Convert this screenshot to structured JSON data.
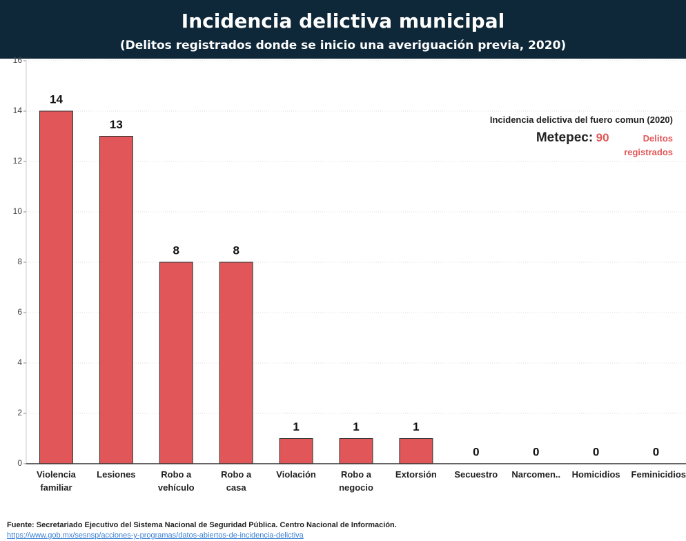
{
  "chart_data": {
    "type": "bar",
    "title": "Incidencia delictiva municipal",
    "subtitle": "(Delitos registrados donde se inicio una averiguación previa,  2020)",
    "categories": [
      "Violencia familiar",
      "Lesiones",
      "Robo a vehículo",
      "Robo a casa",
      "Violación",
      "Robo a negocio",
      "Extorsión",
      "Secuestro",
      "Narcomen..",
      "Homicidios",
      "Feminicidios"
    ],
    "values": [
      14,
      13,
      8,
      8,
      1,
      1,
      1,
      0,
      0,
      0,
      0
    ],
    "color": "#e15759",
    "ylim": [
      0,
      16
    ],
    "yticks": [
      0,
      2,
      4,
      6,
      8,
      10,
      12,
      14,
      16
    ],
    "grid": true,
    "annotation": {
      "title": "Incidencia delictiva del fuero comun (2020)",
      "place": "Metepec:",
      "count": 90,
      "unit": "Delitos registrados"
    },
    "source": "Fuente: Secretariado Ejecutivo del Sistema Nacional de Seguridad Pública. Centro Nacional de Información.",
    "link": "https://www.gob.mx/sesnsp/acciones-y-programas/datos-abiertos-de-incidencia-delictiva"
  }
}
